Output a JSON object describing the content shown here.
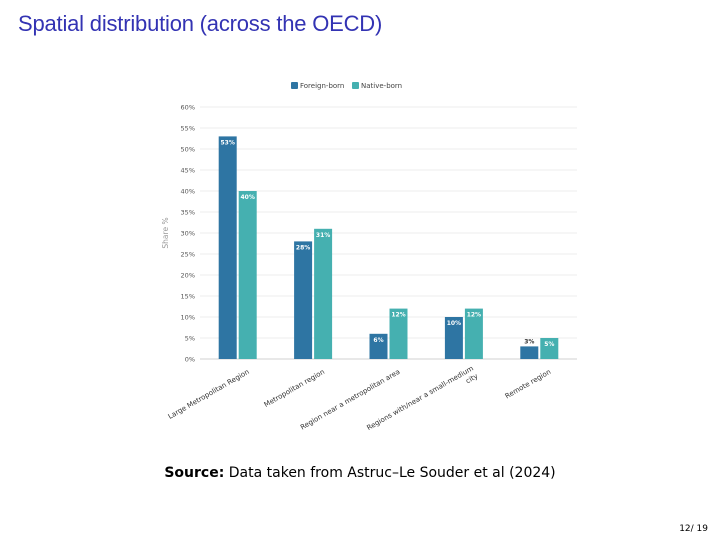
{
  "slide": {
    "title": "Spatial distribution (across the OECD)",
    "source_label": "Source:",
    "source_text": "Data taken from Astruc–Le Souder et al (2024)",
    "page_current": "12",
    "page_total": "19"
  },
  "colors": {
    "title": "#3333b3",
    "foreign": "#2e75a3",
    "native": "#45b0b0"
  },
  "chart_data": {
    "type": "bar",
    "categories": [
      "Large Metropolitan Region",
      "Metropolitan region",
      "Region near a metropolitan area",
      "Regions with/near a small-medium city",
      "Remote region"
    ],
    "series": [
      {
        "name": "Foreign-born",
        "values": [
          53,
          28,
          6,
          10,
          3
        ],
        "labels": [
          "53%",
          "28%",
          "6%",
          "10%",
          "3%"
        ]
      },
      {
        "name": "Native-born",
        "values": [
          40,
          31,
          12,
          12,
          5
        ],
        "labels": [
          "40%",
          "31%",
          "12%",
          "12%",
          "5%"
        ]
      }
    ],
    "ylabel": "Share %",
    "xlabel": "",
    "ylim": [
      0,
      60
    ],
    "yticks": [
      0,
      5,
      10,
      15,
      20,
      25,
      30,
      35,
      40,
      45,
      50,
      55,
      60
    ],
    "ytick_labels": [
      "0%",
      "5%",
      "10%",
      "15%",
      "20%",
      "25%",
      "30%",
      "35%",
      "40%",
      "45%",
      "50%",
      "55%",
      "60%"
    ],
    "legend_position": "top-center",
    "grid": true
  }
}
